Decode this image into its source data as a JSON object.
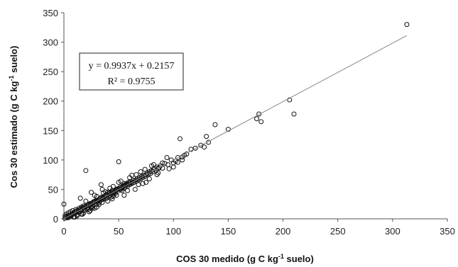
{
  "chart_data": {
    "type": "scatter",
    "xlabel_prefix": "COS 30 medido (g C kg",
    "xlabel_sup": "-1",
    "xlabel_suffix": " suelo)",
    "ylabel_prefix": "Cos 30 estimado (g C kg",
    "ylabel_sup": "-1",
    "ylabel_suffix": " suelo)",
    "xlim": [
      0,
      350
    ],
    "ylim": [
      0,
      350
    ],
    "x_ticks": [
      0,
      50,
      100,
      150,
      200,
      250,
      300,
      350
    ],
    "y_ticks": [
      0,
      50,
      100,
      150,
      200,
      250,
      300,
      350
    ],
    "grid": false,
    "legend": "none",
    "equation": "y = 0.9937x + 0.2157",
    "r2_label": "R² = 0.9755",
    "trendline": {
      "slope": 0.9937,
      "intercept": 0.2157,
      "x_range": [
        0,
        313
      ]
    },
    "points": [
      [
        0,
        25
      ],
      [
        1,
        5
      ],
      [
        2,
        8
      ],
      [
        3,
        2
      ],
      [
        4,
        10
      ],
      [
        5,
        4
      ],
      [
        6,
        12
      ],
      [
        7,
        6
      ],
      [
        8,
        14
      ],
      [
        9,
        3
      ],
      [
        10,
        9
      ],
      [
        11,
        16
      ],
      [
        12,
        7
      ],
      [
        13,
        11
      ],
      [
        14,
        18
      ],
      [
        15,
        13
      ],
      [
        16,
        20
      ],
      [
        17,
        8
      ],
      [
        18,
        22
      ],
      [
        19,
        15
      ],
      [
        20,
        82
      ],
      [
        21,
        17
      ],
      [
        22,
        24
      ],
      [
        23,
        12
      ],
      [
        24,
        26
      ],
      [
        25,
        20
      ],
      [
        26,
        21
      ],
      [
        27,
        28
      ],
      [
        28,
        18
      ],
      [
        29,
        30
      ],
      [
        30,
        25
      ],
      [
        31,
        32
      ],
      [
        32,
        27
      ],
      [
        33,
        30
      ],
      [
        34,
        58
      ],
      [
        35,
        33
      ],
      [
        36,
        36
      ],
      [
        37,
        34
      ],
      [
        38,
        40
      ],
      [
        39,
        35
      ],
      [
        40,
        45
      ],
      [
        41,
        38
      ],
      [
        42,
        44
      ],
      [
        43,
        37
      ],
      [
        44,
        48
      ],
      [
        45,
        42
      ],
      [
        46,
        46
      ],
      [
        47,
        43
      ],
      [
        48,
        50
      ],
      [
        49,
        47
      ],
      [
        50,
        97
      ],
      [
        51,
        50
      ],
      [
        52,
        54
      ],
      [
        53,
        48
      ],
      [
        54,
        56
      ],
      [
        55,
        52
      ],
      [
        56,
        57
      ],
      [
        57,
        60
      ],
      [
        58,
        55
      ],
      [
        59,
        62
      ],
      [
        60,
        58
      ],
      [
        61,
        63
      ],
      [
        62,
        60
      ],
      [
        63,
        65
      ],
      [
        64,
        62
      ],
      [
        65,
        66
      ],
      [
        66,
        64
      ],
      [
        67,
        68
      ],
      [
        68,
        66
      ],
      [
        69,
        70
      ],
      [
        70,
        68
      ],
      [
        71,
        72
      ],
      [
        72,
        70
      ],
      [
        73,
        74
      ],
      [
        74,
        72
      ],
      [
        75,
        75
      ],
      [
        76,
        78
      ],
      [
        77,
        76
      ],
      [
        78,
        80
      ],
      [
        79,
        77
      ],
      [
        80,
        82
      ],
      [
        81,
        80
      ],
      [
        82,
        84
      ],
      [
        83,
        86
      ],
      [
        84,
        82
      ],
      [
        85,
        88
      ],
      [
        86,
        85
      ],
      [
        87,
        87
      ],
      [
        88,
        90
      ],
      [
        90,
        86
      ],
      [
        92,
        94
      ],
      [
        95,
        92
      ],
      [
        98,
        100
      ],
      [
        100,
        95
      ],
      [
        102,
        98
      ],
      [
        104,
        104
      ],
      [
        106,
        136
      ],
      [
        108,
        105
      ],
      [
        110,
        108
      ],
      [
        112,
        110
      ],
      [
        120,
        120
      ],
      [
        125,
        125
      ],
      [
        128,
        122
      ],
      [
        130,
        140
      ],
      [
        132,
        130
      ],
      [
        138,
        160
      ],
      [
        150,
        152
      ],
      [
        176,
        170
      ],
      [
        178,
        178
      ],
      [
        180,
        165
      ],
      [
        206,
        202
      ],
      [
        210,
        178
      ],
      [
        313,
        330
      ],
      [
        4,
        2
      ],
      [
        6,
        5
      ],
      [
        8,
        9
      ],
      [
        10,
        12
      ],
      [
        12,
        14
      ],
      [
        14,
        12
      ],
      [
        16,
        15
      ],
      [
        18,
        19
      ],
      [
        20,
        21
      ],
      [
        22,
        20
      ],
      [
        24,
        23
      ],
      [
        26,
        27
      ],
      [
        28,
        29
      ],
      [
        30,
        29
      ],
      [
        32,
        33
      ],
      [
        34,
        36
      ],
      [
        36,
        35
      ],
      [
        38,
        39
      ],
      [
        40,
        41
      ],
      [
        42,
        40
      ],
      [
        44,
        45
      ],
      [
        46,
        44
      ],
      [
        48,
        49
      ],
      [
        50,
        51
      ],
      [
        52,
        50
      ],
      [
        54,
        55
      ],
      [
        56,
        54
      ],
      [
        58,
        59
      ],
      [
        60,
        61
      ],
      [
        62,
        61
      ],
      [
        15,
        35
      ],
      [
        18,
        10
      ],
      [
        25,
        45
      ],
      [
        30,
        20
      ],
      [
        35,
        50
      ],
      [
        40,
        30
      ],
      [
        45,
        55
      ],
      [
        55,
        40
      ],
      [
        60,
        70
      ],
      [
        65,
        50
      ],
      [
        70,
        80
      ],
      [
        75,
        62
      ],
      [
        80,
        90
      ],
      [
        85,
        75
      ],
      [
        90,
        95
      ],
      [
        35,
        28
      ],
      [
        45,
        38
      ],
      [
        55,
        60
      ],
      [
        20,
        30
      ],
      [
        28,
        40
      ],
      [
        24,
        14
      ],
      [
        32,
        24
      ],
      [
        38,
        46
      ],
      [
        42,
        52
      ],
      [
        48,
        40
      ],
      [
        52,
        64
      ],
      [
        58,
        48
      ],
      [
        66,
        75
      ],
      [
        72,
        60
      ],
      [
        96,
        85
      ],
      [
        1,
        1
      ],
      [
        2,
        3
      ],
      [
        3,
        5
      ],
      [
        5,
        6
      ],
      [
        7,
        8
      ],
      [
        9,
        10
      ],
      [
        11,
        12
      ],
      [
        13,
        15
      ],
      [
        15,
        16
      ],
      [
        17,
        19
      ],
      [
        19,
        20
      ],
      [
        21,
        23
      ],
      [
        23,
        25
      ],
      [
        25,
        26
      ],
      [
        27,
        29
      ],
      [
        29,
        31
      ],
      [
        31,
        30
      ],
      [
        33,
        35
      ],
      [
        35,
        37
      ],
      [
        37,
        38
      ],
      [
        39,
        41
      ],
      [
        41,
        43
      ],
      [
        43,
        42
      ],
      [
        45,
        47
      ],
      [
        47,
        48
      ],
      [
        49,
        51
      ],
      [
        51,
        53
      ],
      [
        53,
        52
      ],
      [
        55,
        57
      ],
      [
        57,
        58
      ],
      [
        10,
        3
      ],
      [
        12,
        5
      ],
      [
        16,
        8
      ],
      [
        22,
        16
      ],
      [
        26,
        18
      ],
      [
        30,
        38
      ],
      [
        36,
        44
      ],
      [
        44,
        34
      ],
      [
        50,
        62
      ],
      [
        62,
        74
      ],
      [
        68,
        58
      ],
      [
        74,
        84
      ],
      [
        78,
        68
      ],
      [
        82,
        92
      ],
      [
        86,
        78
      ],
      [
        94,
        104
      ],
      [
        100,
        88
      ],
      [
        104,
        96
      ],
      [
        108,
        100
      ],
      [
        116,
        118
      ]
    ]
  }
}
